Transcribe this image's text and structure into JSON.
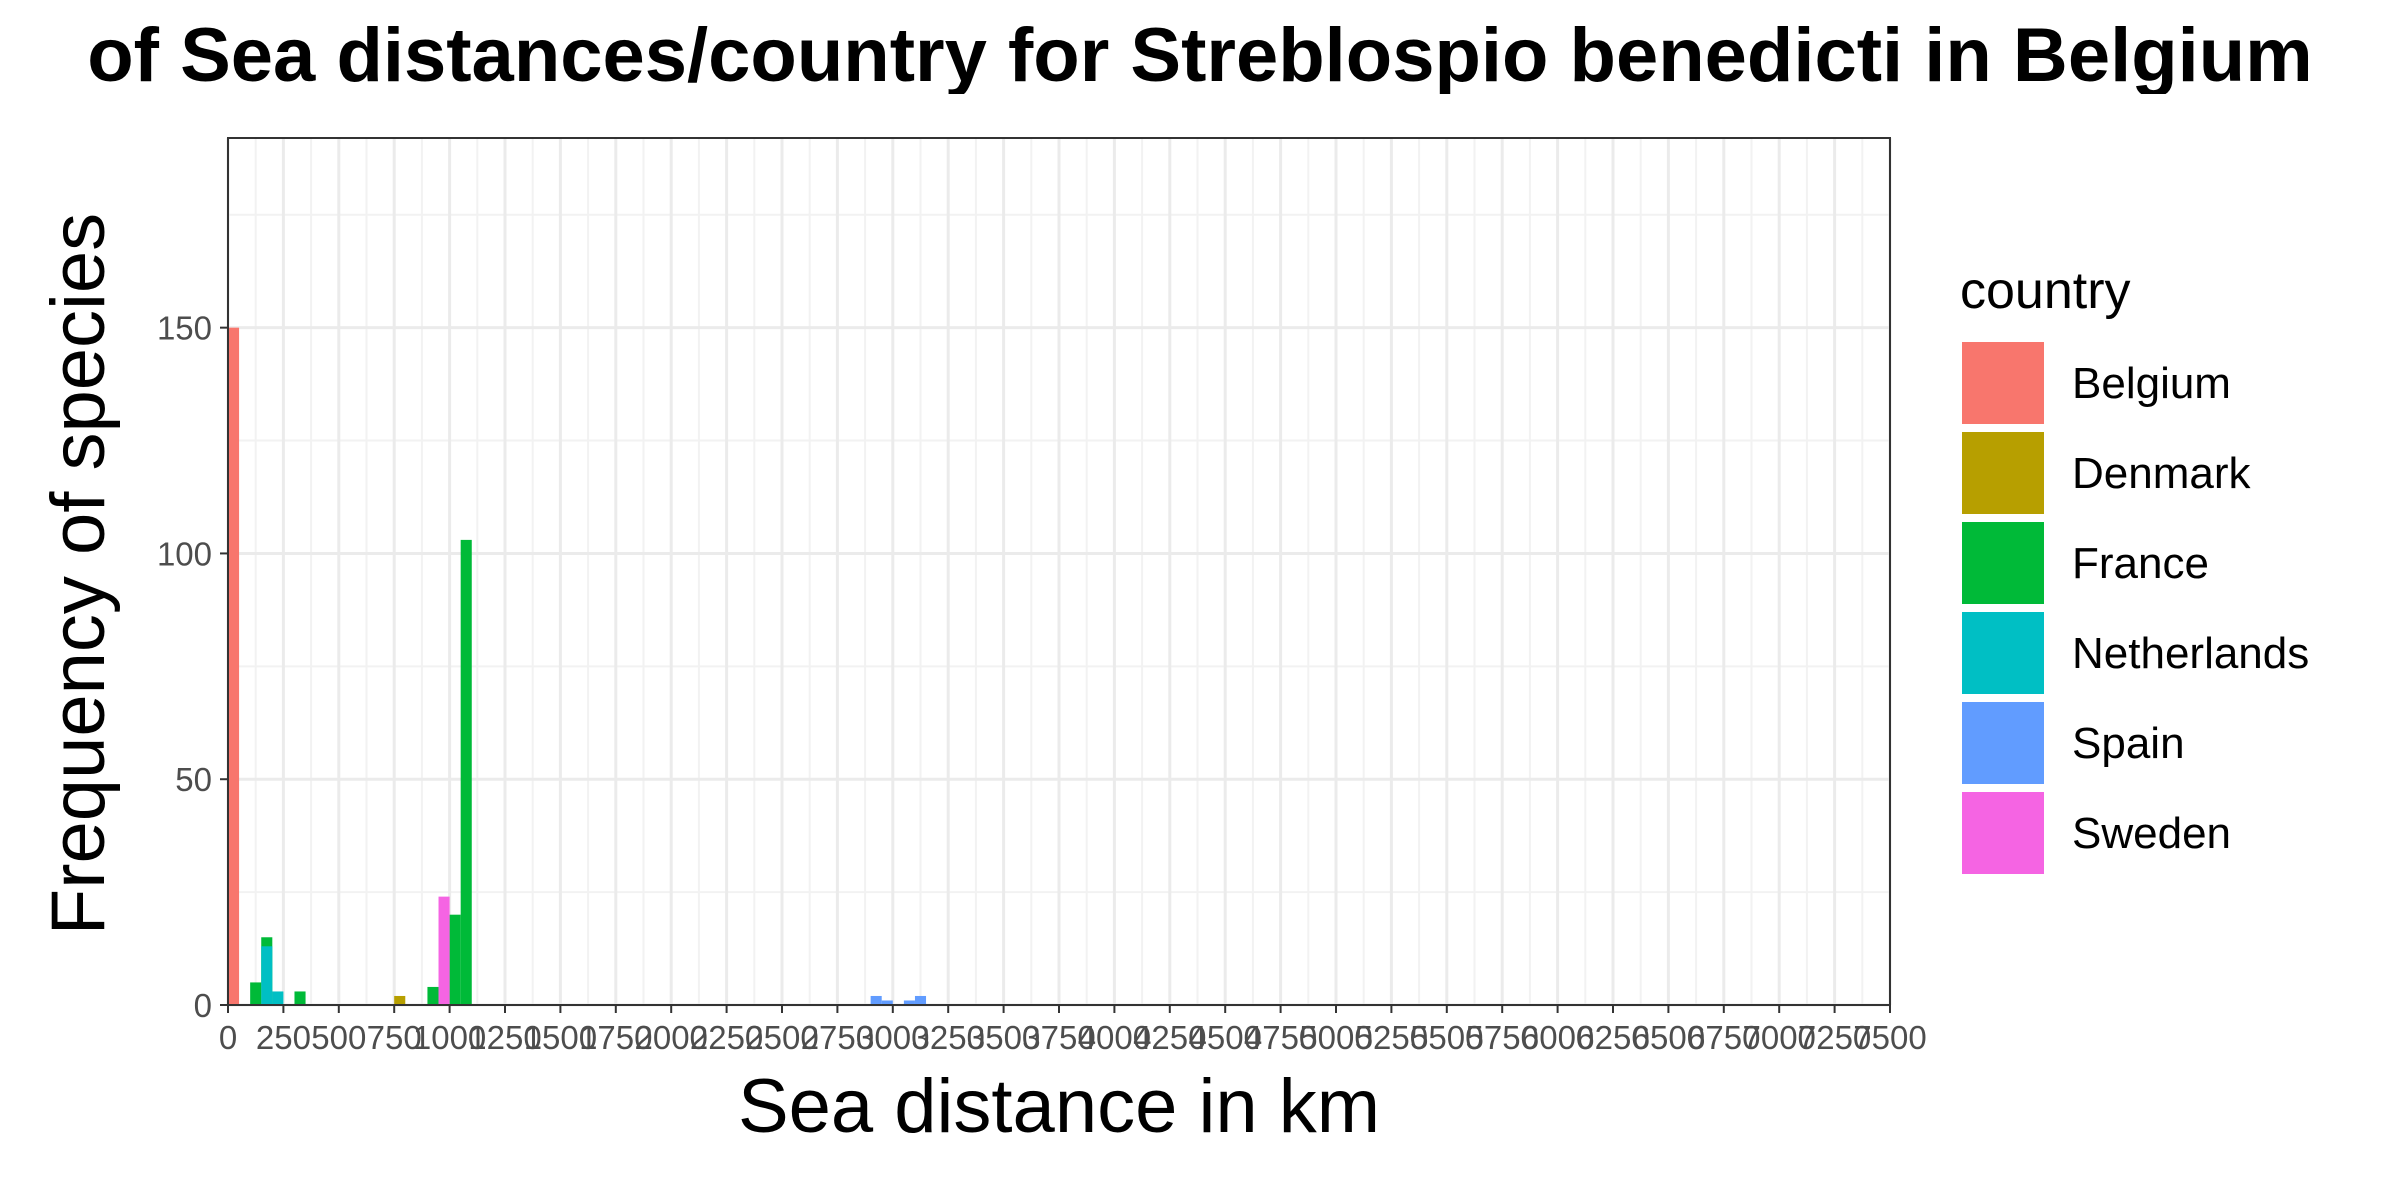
{
  "chart_data": {
    "type": "bar",
    "title": "of Sea distances/country for Streblospio benedicti in Belgium",
    "xlabel": "Sea distance in km",
    "ylabel": "Frequency of species",
    "xlim": [
      0,
      7500
    ],
    "ylim": [
      0,
      192
    ],
    "x_ticks": [
      0,
      250,
      500,
      750,
      1000,
      1250,
      1500,
      1750,
      2000,
      2250,
      2500,
      2750,
      3000,
      3250,
      3500,
      3750,
      4000,
      4250,
      4500,
      4750,
      5000,
      5250,
      5500,
      5750,
      6000,
      6250,
      6500,
      6750,
      7000,
      7250,
      7500
    ],
    "y_ticks": [
      0,
      50,
      100,
      150
    ],
    "bin_width_km": 50,
    "grid": true,
    "legend_title": "country",
    "legend_position": "right",
    "series": [
      {
        "name": "Belgium",
        "color": "#F8766D",
        "bars": [
          {
            "x": 25,
            "value": 150
          }
        ]
      },
      {
        "name": "Denmark",
        "color": "#B79F00",
        "bars": [
          {
            "x": 775,
            "value": 2
          }
        ]
      },
      {
        "name": "France",
        "color": "#00BA38",
        "bars": [
          {
            "x": 125,
            "value": 5
          },
          {
            "x": 175,
            "value": 15
          },
          {
            "x": 325,
            "value": 3
          },
          {
            "x": 925,
            "value": 4
          },
          {
            "x": 1025,
            "value": 20
          },
          {
            "x": 1075,
            "value": 103
          }
        ]
      },
      {
        "name": "Netherlands",
        "color": "#00BFC4",
        "bars": [
          {
            "x": 175,
            "value": 13
          },
          {
            "x": 225,
            "value": 3
          }
        ]
      },
      {
        "name": "Spain",
        "color": "#619CFF",
        "bars": [
          {
            "x": 2925,
            "value": 2
          },
          {
            "x": 2975,
            "value": 1
          },
          {
            "x": 3075,
            "value": 1
          },
          {
            "x": 3125,
            "value": 2
          }
        ]
      },
      {
        "name": "Sweden",
        "color": "#F564E3",
        "bars": [
          {
            "x": 975,
            "value": 24
          }
        ]
      }
    ]
  }
}
